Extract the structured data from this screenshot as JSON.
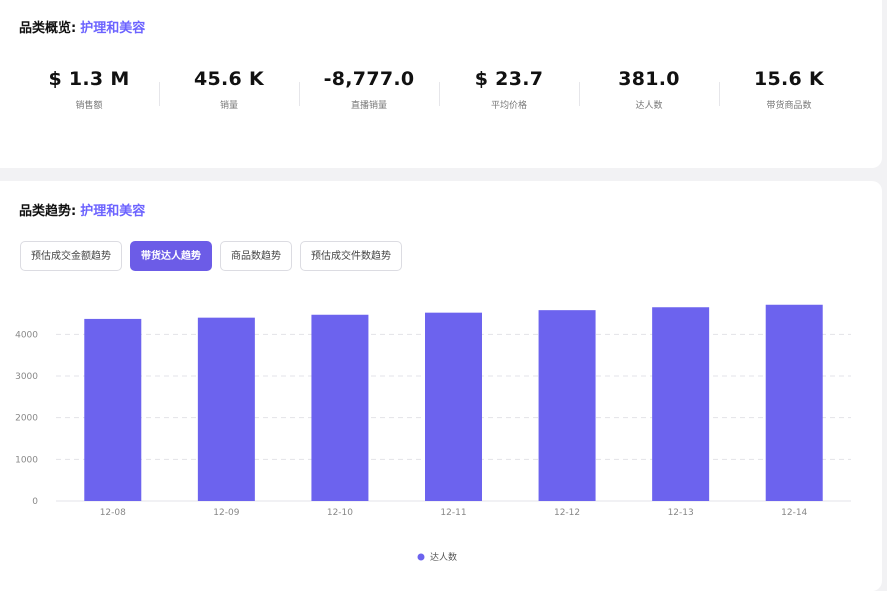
{
  "overview": {
    "title": "品类概览:",
    "category": "护理和美容",
    "metrics": [
      {
        "value": "$ 1.3 M",
        "label": "销售额"
      },
      {
        "value": "45.6 K",
        "label": "销量"
      },
      {
        "value": "-8,777.0",
        "label": "直播销量"
      },
      {
        "value": "$ 23.7",
        "label": "平均价格"
      },
      {
        "value": "381.0",
        "label": "达人数"
      },
      {
        "value": "15.6 K",
        "label": "带货商品数"
      }
    ]
  },
  "trend": {
    "title": "品类趋势:",
    "category": "护理和美容",
    "tabs": [
      {
        "label": "预估成交金额趋势",
        "active": false
      },
      {
        "label": "带货达人趋势",
        "active": true
      },
      {
        "label": "商品数趋势",
        "active": false
      },
      {
        "label": "预估成交件数趋势",
        "active": false
      }
    ]
  },
  "chart_data": {
    "type": "bar",
    "categories": [
      "12-08",
      "12-09",
      "12-10",
      "12-11",
      "12-12",
      "12-13",
      "12-14"
    ],
    "series": [
      {
        "name": "达人数",
        "values": [
          4370,
          4400,
          4470,
          4520,
          4580,
          4650,
          4710
        ],
        "color": "#6c63ee"
      }
    ],
    "yticks": [
      0,
      1000,
      2000,
      3000,
      4000
    ],
    "ylim": [
      0,
      4800
    ],
    "grid": true,
    "legend": "bottom-center"
  }
}
